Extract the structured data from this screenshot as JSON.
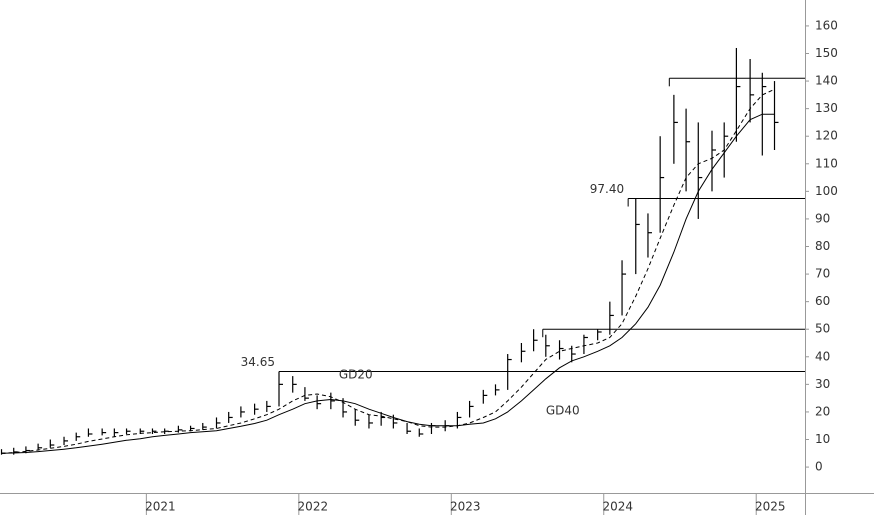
{
  "chart_data": {
    "type": "ohlc",
    "x": [
      2020.05,
      2020.13,
      2020.21,
      2020.29,
      2020.37,
      2020.46,
      2020.54,
      2020.62,
      2020.71,
      2020.79,
      2020.87,
      2020.96,
      2021.04,
      2021.12,
      2021.21,
      2021.29,
      2021.37,
      2021.46,
      2021.54,
      2021.62,
      2021.71,
      2021.79,
      2021.87,
      2021.96,
      2022.04,
      2022.12,
      2022.21,
      2022.29,
      2022.37,
      2022.46,
      2022.54,
      2022.62,
      2022.71,
      2022.79,
      2022.87,
      2022.96,
      2023.04,
      2023.12,
      2023.21,
      2023.29,
      2023.37,
      2023.46,
      2023.54,
      2023.62,
      2023.71,
      2023.79,
      2023.87,
      2023.96,
      2024.04,
      2024.12,
      2024.21,
      2024.29,
      2024.37,
      2024.46,
      2024.54,
      2024.62,
      2024.71,
      2024.79,
      2024.87,
      2024.96,
      2025.04,
      2025.12
    ],
    "high": [
      6.5,
      7,
      7.5,
      8.5,
      10,
      11,
      12.5,
      14,
      14,
      14,
      14,
      14,
      14,
      14,
      15,
      15,
      16,
      18,
      20,
      22,
      23,
      24,
      34.65,
      33,
      29,
      26,
      27,
      25,
      21,
      19,
      20,
      19,
      16,
      14,
      16,
      17,
      20,
      24,
      28,
      30,
      41,
      45,
      50,
      48,
      46,
      44,
      48,
      50,
      60,
      75,
      97.4,
      92,
      120,
      135,
      130,
      125,
      122,
      125,
      152,
      148,
      143,
      140
    ],
    "low": [
      4.5,
      4.5,
      5,
      6,
      7,
      8,
      9.5,
      11,
      11.5,
      11,
      12,
      12,
      12,
      12,
      12.5,
      13,
      13.5,
      14,
      16,
      18,
      19,
      20,
      22,
      27,
      24,
      21,
      21,
      18,
      15,
      14,
      15,
      14,
      12,
      11,
      12,
      13,
      14,
      18,
      23,
      26,
      28,
      38,
      42,
      40,
      39,
      38,
      41,
      46,
      48,
      55,
      70,
      76,
      85,
      110,
      100,
      90,
      100,
      105,
      118,
      125,
      113,
      115
    ],
    "close": [
      5,
      5.5,
      6,
      7,
      8,
      9.5,
      11,
      12,
      12.5,
      12.5,
      13,
      13,
      13,
      13,
      13.5,
      14,
      14.5,
      16,
      18,
      20,
      21,
      22,
      30,
      30,
      25,
      23,
      24,
      20,
      17,
      16,
      18,
      16,
      13,
      12,
      15,
      15,
      18,
      22,
      26,
      28,
      39,
      42,
      46,
      44,
      43,
      41,
      47,
      49,
      55,
      70,
      88,
      85,
      105,
      125,
      118,
      105,
      115,
      120,
      138,
      135,
      138,
      125
    ],
    "series": [
      {
        "name": "GD20",
        "color": "#000000",
        "dashed": true,
        "values": [
          5,
          5.3,
          5.7,
          6.2,
          6.8,
          7.5,
          8.3,
          9.3,
          10.2,
          11,
          11.7,
          12.2,
          12.5,
          12.8,
          13,
          13.2,
          13.6,
          14,
          15,
          16,
          17.5,
          19,
          21,
          24,
          26,
          26.5,
          25.5,
          23.5,
          21,
          19,
          18.5,
          17.5,
          16.5,
          15,
          14.5,
          14.5,
          15,
          16,
          18,
          20,
          24,
          29,
          34,
          39,
          42,
          43,
          44,
          45,
          47,
          52,
          62,
          72,
          83,
          95,
          105,
          110,
          112,
          115,
          122,
          130,
          135,
          137
        ]
      },
      {
        "name": "GD40",
        "color": "#000000",
        "dashed": false,
        "values": [
          5,
          5.1,
          5.3,
          5.6,
          6,
          6.5,
          7,
          7.6,
          8.3,
          9,
          9.7,
          10.3,
          11,
          11.5,
          12,
          12.5,
          12.8,
          13.2,
          14,
          14.8,
          15.8,
          17,
          19,
          21,
          23,
          24,
          24.5,
          24,
          23,
          21,
          19.5,
          18,
          16.5,
          15.5,
          15,
          15,
          15,
          15.5,
          16,
          17.5,
          20,
          24,
          28,
          32,
          36,
          38.5,
          40,
          42,
          44,
          47,
          52,
          58,
          66,
          78,
          90,
          100,
          108,
          114,
          120,
          126,
          128,
          128
        ]
      }
    ],
    "levels": [
      {
        "value": 34.65,
        "start": 2021.87,
        "label": "34.65"
      },
      {
        "value": 50,
        "start": 2023.6
      },
      {
        "value": 97.4,
        "start": 2024.16,
        "label": "97.40"
      },
      {
        "value": 141,
        "start": 2024.43
      }
    ],
    "xlim": [
      2020.04,
      2025.32
    ],
    "xticks": [
      2021,
      2022,
      2023,
      2024,
      2025
    ],
    "ylim": [
      -9.4,
      169.4
    ],
    "yticks": [
      0,
      10,
      20,
      30,
      40,
      50,
      60,
      70,
      80,
      90,
      100,
      110,
      120,
      130,
      140,
      150,
      160
    ]
  }
}
